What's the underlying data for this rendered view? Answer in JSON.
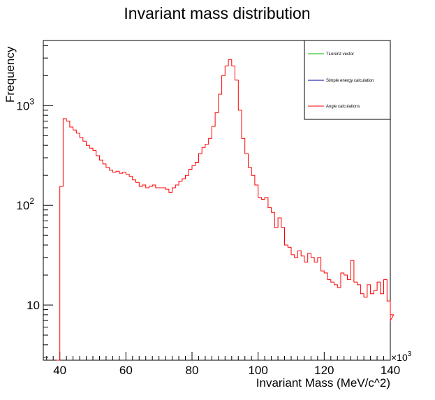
{
  "chart_data": {
    "type": "line",
    "title": "Invariant mass distribution",
    "xlabel": "Invariant Mass (MeV/c^2)",
    "ylabel": "Frequency",
    "x_multiplier_label": "×10",
    "x_multiplier_exp": "3",
    "xlim": [
      35,
      140
    ],
    "ylim": [
      2.8,
      4500
    ],
    "yscale": "log",
    "x_ticks": [
      {
        "value": 40,
        "label": "40"
      },
      {
        "value": 60,
        "label": "60"
      },
      {
        "value": 80,
        "label": "80"
      },
      {
        "value": 100,
        "label": "100"
      },
      {
        "value": 120,
        "label": "120"
      },
      {
        "value": 140,
        "label": "140"
      }
    ],
    "y_ticks": [
      {
        "value": 10,
        "base": "10",
        "exp": ""
      },
      {
        "value": 100,
        "base": "10",
        "exp": "2"
      },
      {
        "value": 1000,
        "base": "10",
        "exp": "3"
      }
    ],
    "legend_position": "top-right",
    "legend": [
      {
        "name": "TLorenz vector",
        "color": "#00bb00"
      },
      {
        "name": "Simple energy calculation",
        "color": "#000099"
      },
      {
        "name": "Angle calculations",
        "color": "#ff0000"
      }
    ],
    "series": [
      {
        "name": "Angle calculations",
        "color": "#ff0000",
        "bin_start": 39,
        "bin_width": 1,
        "values": [
          2.5,
          155,
          740,
          700,
          610,
          570,
          530,
          480,
          440,
          400,
          375,
          355,
          315,
          285,
          260,
          240,
          225,
          215,
          220,
          210,
          215,
          205,
          195,
          180,
          170,
          155,
          160,
          150,
          155,
          160,
          150,
          150,
          150,
          145,
          135,
          150,
          160,
          175,
          185,
          200,
          230,
          250,
          270,
          330,
          380,
          410,
          470,
          620,
          850,
          1300,
          2000,
          2500,
          2900,
          2500,
          1800,
          900,
          470,
          330,
          240,
          200,
          160,
          120,
          115,
          120,
          95,
          85,
          60,
          75,
          60,
          40,
          38,
          32,
          30,
          35,
          31,
          27,
          33,
          30,
          27,
          30,
          22,
          21,
          18,
          17,
          16,
          15,
          21,
          20,
          18,
          28,
          17,
          16,
          13,
          12,
          16,
          13,
          14,
          17,
          13,
          18,
          11,
          7,
          8
        ]
      }
    ]
  }
}
